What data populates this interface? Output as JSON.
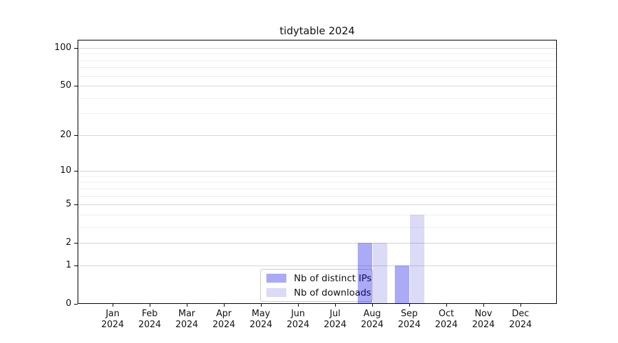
{
  "title": "tidytable 2024",
  "chart_data": {
    "type": "bar",
    "title": "tidytable 2024",
    "xlabel": "",
    "ylabel": "",
    "yaxis": {
      "scale": "log1p",
      "major_ticks": [
        0,
        1,
        2,
        5,
        10,
        20,
        50,
        100
      ],
      "minor_gridlines": [
        3,
        4,
        6,
        7,
        8,
        9,
        30,
        40,
        60,
        70,
        80,
        90
      ],
      "ylim": [
        0,
        116
      ]
    },
    "categories": [
      {
        "month": "Jan",
        "year": "2024"
      },
      {
        "month": "Feb",
        "year": "2024"
      },
      {
        "month": "Mar",
        "year": "2024"
      },
      {
        "month": "Apr",
        "year": "2024"
      },
      {
        "month": "May",
        "year": "2024"
      },
      {
        "month": "Jun",
        "year": "2024"
      },
      {
        "month": "Jul",
        "year": "2024"
      },
      {
        "month": "Aug",
        "year": "2024"
      },
      {
        "month": "Sep",
        "year": "2024"
      },
      {
        "month": "Oct",
        "year": "2024"
      },
      {
        "month": "Nov",
        "year": "2024"
      },
      {
        "month": "Dec",
        "year": "2024"
      }
    ],
    "series": [
      {
        "name": "Nb of distinct IPs",
        "color": "rgba(0,0,231,0.335)",
        "values": [
          0,
          0,
          0,
          0,
          0,
          0,
          0,
          2,
          1,
          0,
          0,
          0
        ]
      },
      {
        "name": "Nb of downloads",
        "color": "rgba(0,0,200,0.14)",
        "values": [
          0,
          0,
          0,
          0,
          0,
          0,
          0,
          2,
          4,
          0,
          0,
          0
        ]
      }
    ],
    "legend_position": "bottom-center",
    "grid": true,
    "colors": {
      "axis": "#000000",
      "grid_major": "#d6d6d6",
      "grid_minor": "#efefef",
      "background": "#ffffff"
    }
  }
}
